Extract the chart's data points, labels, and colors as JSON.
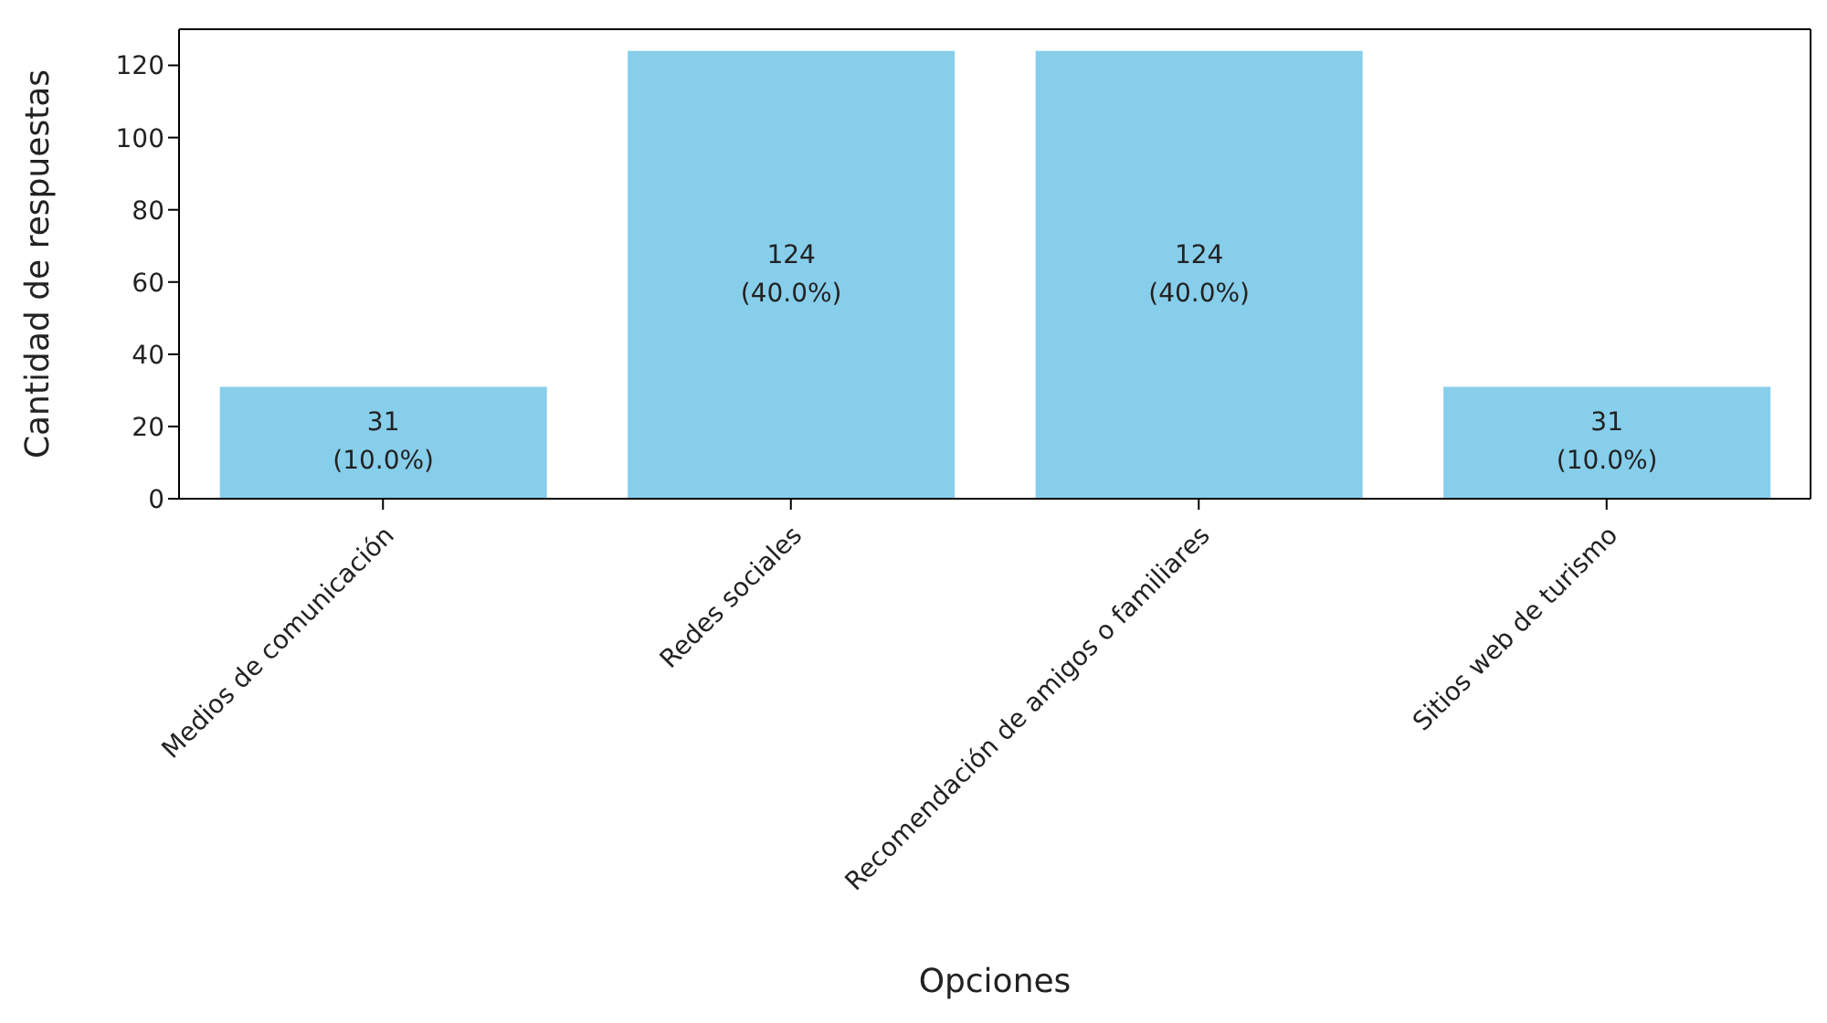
{
  "chart_data": {
    "type": "bar",
    "xlabel": "Opciones",
    "ylabel": "Cantidad de respuestas",
    "categories": [
      "Medios de comunicación",
      "Redes sociales",
      "Recomendación de amigos o familiares",
      "Sitios web de turismo"
    ],
    "values": [
      31,
      124,
      124,
      31
    ],
    "value_labels": [
      "31\n(10.0%)",
      "124\n(40.0%)",
      "124\n(40.0%)",
      "31\n(10.0%)"
    ],
    "color": "#87ceeb",
    "ylim": [
      0,
      130
    ],
    "yticks": [
      0,
      20,
      40,
      60,
      80,
      100,
      120
    ],
    "grid": false
  }
}
